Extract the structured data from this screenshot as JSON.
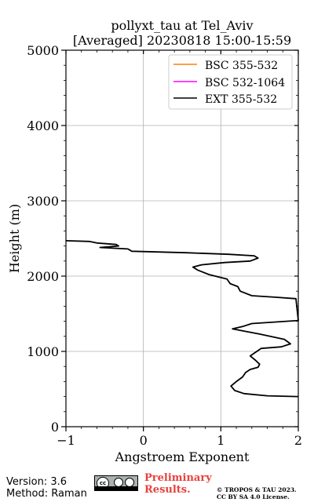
{
  "chart_data": {
    "type": "line",
    "title_line1": "pollyxt_tau at Tel_Aviv",
    "title_line2": "[Averaged] 20230818 15:00-15:59",
    "xlabel": "Angstroem Exponent",
    "ylabel": "Height (m)",
    "xlim": [
      -1,
      2
    ],
    "ylim": [
      0,
      5000
    ],
    "xticks": [
      -1,
      0,
      1,
      2
    ],
    "yticks": [
      0,
      1000,
      2000,
      3000,
      4000,
      5000
    ],
    "grid": true,
    "legend_position": "top-right",
    "series": [
      {
        "name": "BSC 355-532",
        "color": "#ff7f0e",
        "points": []
      },
      {
        "name": "BSC 532-1064",
        "color": "#ff00ff",
        "points": []
      },
      {
        "name": "EXT 355-532",
        "color": "#000000",
        "points": [
          [
            2.0,
            400
          ],
          [
            1.6,
            410
          ],
          [
            1.3,
            440
          ],
          [
            1.18,
            480
          ],
          [
            1.13,
            540
          ],
          [
            1.2,
            600
          ],
          [
            1.28,
            660
          ],
          [
            1.32,
            720
          ],
          [
            1.38,
            760
          ],
          [
            1.48,
            790
          ],
          [
            1.5,
            830
          ],
          [
            1.45,
            880
          ],
          [
            1.38,
            940
          ],
          [
            1.45,
            990
          ],
          [
            1.52,
            1040
          ],
          [
            1.78,
            1060
          ],
          [
            1.9,
            1100
          ],
          [
            1.82,
            1160
          ],
          [
            1.5,
            1230
          ],
          [
            1.3,
            1270
          ],
          [
            1.15,
            1300
          ],
          [
            1.28,
            1330
          ],
          [
            1.4,
            1370
          ],
          [
            2.0,
            1410
          ],
          [
            1.97,
            1700
          ],
          [
            1.7,
            1720
          ],
          [
            1.4,
            1740
          ],
          [
            1.25,
            1800
          ],
          [
            1.22,
            1860
          ],
          [
            1.12,
            1900
          ],
          [
            1.1,
            1930
          ],
          [
            1.08,
            1960
          ],
          [
            0.85,
            2020
          ],
          [
            0.7,
            2080
          ],
          [
            0.64,
            2120
          ],
          [
            0.75,
            2150
          ],
          [
            1.05,
            2180
          ],
          [
            1.38,
            2200
          ],
          [
            1.48,
            2240
          ],
          [
            1.43,
            2270
          ],
          [
            1.1,
            2290
          ],
          [
            0.55,
            2310
          ],
          [
            -0.15,
            2330
          ],
          [
            -0.2,
            2360
          ],
          [
            -0.56,
            2380
          ],
          [
            -0.32,
            2400
          ],
          [
            -0.35,
            2420
          ],
          [
            -0.6,
            2440
          ],
          [
            -0.7,
            2460
          ],
          [
            -1.0,
            2470
          ]
        ]
      }
    ]
  },
  "footer": {
    "version": "Version: 3.6",
    "method": "Method: Raman",
    "preliminary_line1": "Preliminary",
    "preliminary_line2": "Results.",
    "copyright_line1": "© TROPOS & TAU 2023.",
    "copyright_line2": "CC BY SA 4.0 License."
  }
}
